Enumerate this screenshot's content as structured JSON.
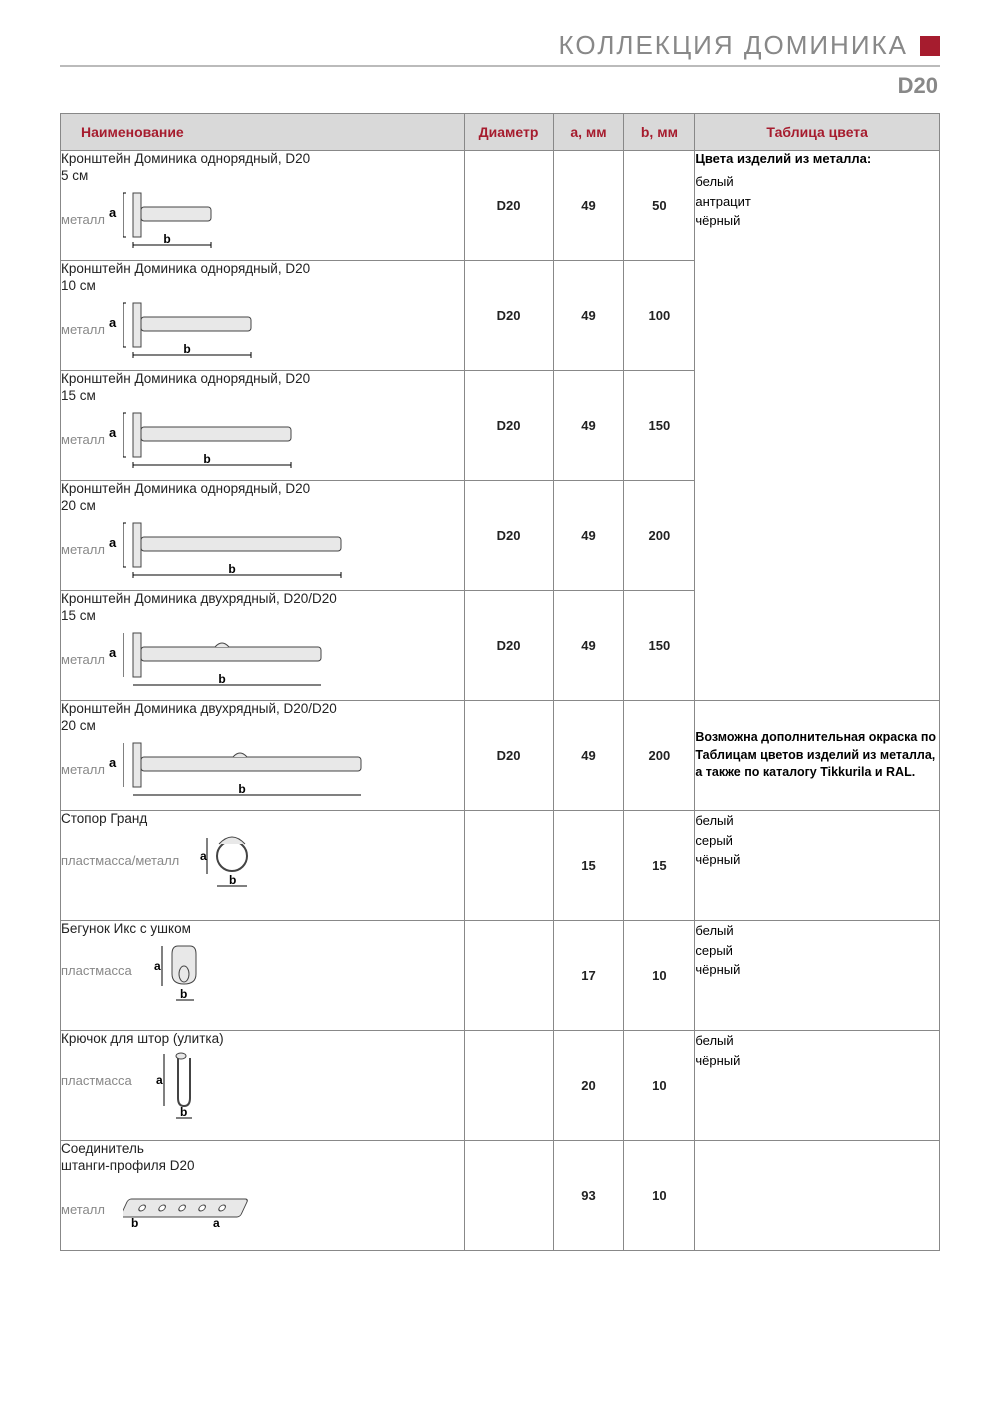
{
  "header": {
    "title": "КОЛЛЕКЦИЯ ДОМИНИКА",
    "code": "D20",
    "accent_color": "#a61c2e",
    "rule_color": "#bbbbbb",
    "text_muted": "#888888"
  },
  "table": {
    "columns": {
      "name": "Наименование",
      "diameter": "Диаметр",
      "a": "a, мм",
      "b": "b, мм",
      "colors": "Таблица цвета"
    },
    "header_bg": "#d9d9d9",
    "header_fg": "#a61c2e",
    "border_color": "#888888"
  },
  "diagram": {
    "label_a": "a",
    "label_b": "b",
    "fill": "#e8e8e8",
    "stroke": "#444444"
  },
  "color_block": {
    "metal_heading": "Цвета изделий из металла:",
    "metal_colors": [
      "белый",
      "антрацит",
      "чёрный"
    ],
    "extra_note": "Возможна дополнительная окраска по Таблицам цветов изделий из металла, а также по каталогу Tikkurila и RAL."
  },
  "rows": [
    {
      "title": "Кронштейн Доминика однорядный, D20",
      "sub": "5 см",
      "material": "металл",
      "diameter": "D20",
      "a": "49",
      "b": "50",
      "bar_len": 70,
      "shape": "single"
    },
    {
      "title": "Кронштейн Доминика однорядный, D20",
      "sub": "10 см",
      "material": "металл",
      "diameter": "D20",
      "a": "49",
      "b": "100",
      "bar_len": 110,
      "shape": "single"
    },
    {
      "title": "Кронштейн Доминика однорядный, D20",
      "sub": "15 см",
      "material": "металл",
      "diameter": "D20",
      "a": "49",
      "b": "150",
      "bar_len": 150,
      "shape": "single"
    },
    {
      "title": "Кронштейн Доминика однорядный, D20",
      "sub": "20 см",
      "material": "металл",
      "diameter": "D20",
      "a": "49",
      "b": "200",
      "bar_len": 200,
      "shape": "single"
    },
    {
      "title": "Кронштейн Доминика двухрядный, D20/D20",
      "sub": "15 см",
      "material": "металл",
      "diameter": "D20",
      "a": "49",
      "b": "150",
      "bar_len": 180,
      "shape": "double"
    },
    {
      "title": "Кронштейн Доминика двухрядный, D20/D20",
      "sub": "20 см",
      "material": "металл",
      "diameter": "D20",
      "a": "49",
      "b": "200",
      "bar_len": 220,
      "shape": "double"
    },
    {
      "title": "Стопор Гранд",
      "sub": "",
      "material": "пластмасса/металл",
      "diameter": "",
      "a": "15",
      "b": "15",
      "shape": "ring",
      "colors": [
        "белый",
        "серый",
        "чёрный"
      ]
    },
    {
      "title": "Бегунок Икс с ушком",
      "sub": "",
      "material": "пластмасса",
      "diameter": "",
      "a": "17",
      "b": "10",
      "shape": "runner",
      "colors": [
        "белый",
        "серый",
        "чёрный"
      ]
    },
    {
      "title": "Крючок для штор (улитка)",
      "sub": "",
      "material": "пластмасса",
      "diameter": "",
      "a": "20",
      "b": "10",
      "shape": "hook",
      "colors": [
        "белый",
        "чёрный"
      ]
    },
    {
      "title": "Соединитель",
      "sub": "штанги-профиля D20",
      "material": "металл",
      "diameter": "",
      "a": "93",
      "b": "10",
      "shape": "connector",
      "colors": []
    }
  ]
}
